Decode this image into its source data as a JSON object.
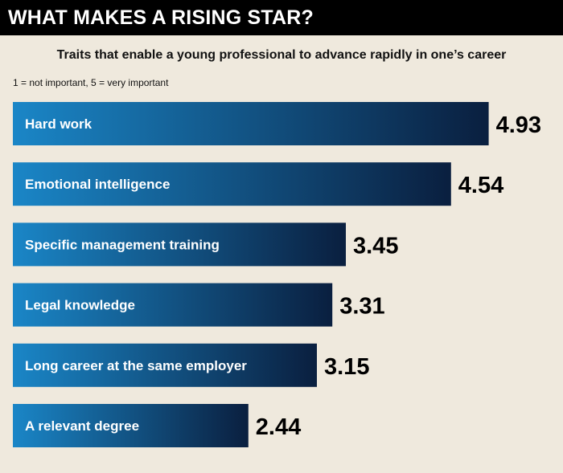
{
  "header": {
    "title": "WHAT MAKES A RISING STAR?"
  },
  "subtitle": "Traits that enable a young professional to advance rapidly in one’s career",
  "scale_note": "1 = not important, 5 = very important",
  "colors": {
    "bar_light": "#1a86c7",
    "bar_dark": "#0a1f3f",
    "background": "#efe9dd",
    "header": "#000000"
  },
  "chart_data": {
    "type": "bar",
    "orientation": "horizontal",
    "title": "WHAT MAKES A RISING STAR?",
    "subtitle": "Traits that enable a young professional to advance rapidly in one’s career",
    "xlabel": "",
    "ylabel": "",
    "xlim": [
      0,
      5
    ],
    "grid": false,
    "categories": [
      "Hard work",
      "Emotional intelligence",
      "Specific management training",
      "Legal knowledge",
      "Long career at the same employer",
      "A relevant degree"
    ],
    "values": [
      4.93,
      4.54,
      3.45,
      3.31,
      3.15,
      2.44
    ],
    "value_labels": [
      "4.93",
      "4.54",
      "3.45",
      "3.31",
      "3.15",
      "2.44"
    ]
  }
}
